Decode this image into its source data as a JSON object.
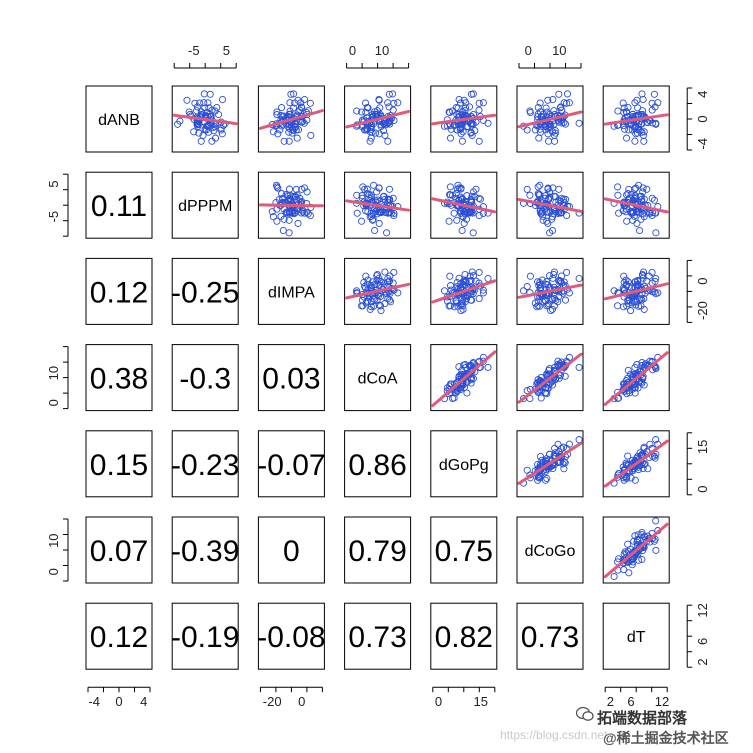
{
  "chart_data": {
    "type": "scatter-matrix",
    "variables": [
      "dANB",
      "dPPPM",
      "dIMPA",
      "dCoA",
      "dGoPg",
      "dCoGo",
      "dT"
    ],
    "correlations": [
      {
        "row": 1,
        "col": 0,
        "value": "0.11"
      },
      {
        "row": 2,
        "col": 0,
        "value": "0.12"
      },
      {
        "row": 2,
        "col": 1,
        "value": "-0.25"
      },
      {
        "row": 3,
        "col": 0,
        "value": "0.38"
      },
      {
        "row": 3,
        "col": 1,
        "value": "-0.3"
      },
      {
        "row": 3,
        "col": 2,
        "value": "0.03"
      },
      {
        "row": 4,
        "col": 0,
        "value": "0.15"
      },
      {
        "row": 4,
        "col": 1,
        "value": "-0.23"
      },
      {
        "row": 4,
        "col": 2,
        "value": "-0.07"
      },
      {
        "row": 4,
        "col": 3,
        "value": "0.86"
      },
      {
        "row": 5,
        "col": 0,
        "value": "0.07"
      },
      {
        "row": 5,
        "col": 1,
        "value": "-0.39"
      },
      {
        "row": 5,
        "col": 2,
        "value": "0"
      },
      {
        "row": 5,
        "col": 3,
        "value": "0.79"
      },
      {
        "row": 5,
        "col": 4,
        "value": "0.75"
      },
      {
        "row": 6,
        "col": 0,
        "value": "0.12"
      },
      {
        "row": 6,
        "col": 1,
        "value": "-0.19"
      },
      {
        "row": 6,
        "col": 2,
        "value": "-0.08"
      },
      {
        "row": 6,
        "col": 3,
        "value": "0.73"
      },
      {
        "row": 6,
        "col": 4,
        "value": "0.82"
      },
      {
        "row": 6,
        "col": 5,
        "value": "0.73"
      }
    ],
    "axis_ranges": [
      [
        -5,
        5
      ],
      [
        -11,
        8
      ],
      [
        -28,
        14
      ],
      [
        -2,
        19
      ],
      [
        -2,
        20
      ],
      [
        -3,
        17
      ],
      [
        1,
        13
      ]
    ],
    "axis_ticks": {
      "top": [
        {
          "col": 1,
          "ticks": [
            "-5",
            "5"
          ],
          "values": [
            -5,
            5
          ]
        },
        {
          "col": 3,
          "ticks": [
            "0",
            "10"
          ],
          "values": [
            0,
            10
          ]
        },
        {
          "col": 5,
          "ticks": [
            "0",
            "10"
          ],
          "values": [
            0,
            10
          ]
        }
      ],
      "bottom": [
        {
          "col": 0,
          "ticks": [
            "-4",
            "0",
            "4"
          ],
          "values": [
            -4,
            0,
            4
          ]
        },
        {
          "col": 2,
          "ticks": [
            "-20",
            "0"
          ],
          "values": [
            -20,
            0
          ]
        },
        {
          "col": 4,
          "ticks": [
            "0",
            "15"
          ],
          "values": [
            0,
            15
          ]
        },
        {
          "col": 6,
          "ticks": [
            "2",
            "6",
            "12"
          ],
          "values": [
            2,
            6,
            12
          ]
        }
      ],
      "left": [
        {
          "row": 1,
          "ticks": [
            "5",
            "-5"
          ],
          "values": [
            5,
            -5
          ]
        },
        {
          "row": 3,
          "ticks": [
            "10",
            "0"
          ],
          "values": [
            10,
            0
          ]
        },
        {
          "row": 5,
          "ticks": [
            "10",
            "0"
          ],
          "values": [
            10,
            0
          ]
        }
      ],
      "right": [
        {
          "row": 0,
          "ticks": [
            "4",
            "0",
            "-4"
          ],
          "values": [
            4,
            0,
            -4
          ]
        },
        {
          "row": 2,
          "ticks": [
            "0",
            "-20"
          ],
          "values": [
            0,
            -20
          ]
        },
        {
          "row": 4,
          "ticks": [
            "15",
            "0"
          ],
          "values": [
            15,
            0
          ]
        },
        {
          "row": 6,
          "ticks": [
            "12",
            "6",
            "2"
          ],
          "values": [
            12,
            6,
            2
          ]
        }
      ]
    },
    "point_color": "#2a4fd6",
    "fit_color": "#e05a7a",
    "n_points": 80
  },
  "watermark": {
    "brand": "拓端数据部落",
    "url": "https://blog.csdn.net",
    "handle": "@稀土掘金技术社区"
  }
}
